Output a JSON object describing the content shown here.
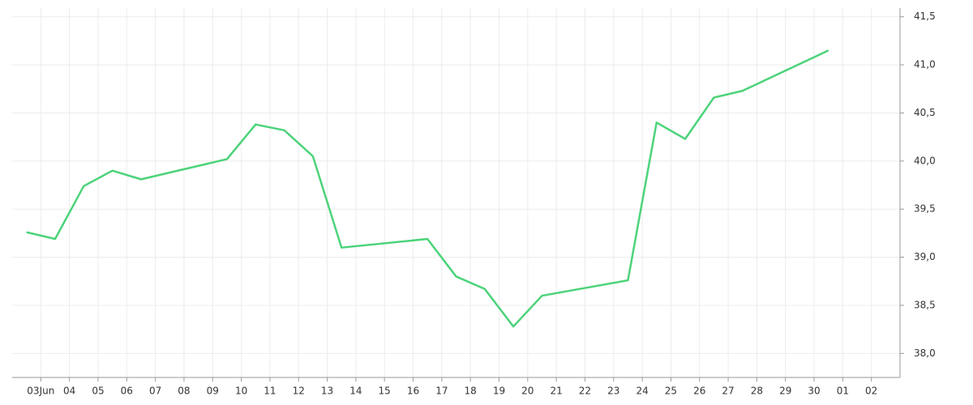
{
  "chart_data": {
    "type": "line",
    "x": [
      -0.5,
      0.5,
      1.5,
      2.5,
      3.5,
      6.5,
      7.5,
      8.5,
      9.5,
      10.5,
      13.5,
      14.5,
      15.5,
      16.5,
      17.5,
      20.5,
      21.5,
      22.5,
      23.5,
      24.5,
      27.5
    ],
    "series": [
      {
        "color": "#4cd37a",
        "values": [
          39.26,
          39.19,
          39.74,
          39.9,
          39.81,
          40.02,
          40.38,
          40.32,
          40.05,
          39.1,
          39.19,
          38.8,
          38.67,
          38.28,
          38.6,
          38.76,
          40.4,
          40.23,
          40.66,
          40.73,
          41.15
        ]
      }
    ],
    "xlim": [
      -1,
      30
    ],
    "xticks": [
      {
        "value": 0,
        "label": "03Jun"
      },
      {
        "value": 1,
        "label": "04"
      },
      {
        "value": 2,
        "label": "05"
      },
      {
        "value": 3,
        "label": "06"
      },
      {
        "value": 4,
        "label": "07"
      },
      {
        "value": 5,
        "label": "08"
      },
      {
        "value": 6,
        "label": "09"
      },
      {
        "value": 7,
        "label": "10"
      },
      {
        "value": 8,
        "label": "11"
      },
      {
        "value": 9,
        "label": "12"
      },
      {
        "value": 10,
        "label": "13"
      },
      {
        "value": 11,
        "label": "14"
      },
      {
        "value": 12,
        "label": "15"
      },
      {
        "value": 13,
        "label": "16"
      },
      {
        "value": 14,
        "label": "17"
      },
      {
        "value": 15,
        "label": "18"
      },
      {
        "value": 16,
        "label": "19"
      },
      {
        "value": 17,
        "label": "20"
      },
      {
        "value": 18,
        "label": "21"
      },
      {
        "value": 19,
        "label": "22"
      },
      {
        "value": 20,
        "label": "23"
      },
      {
        "value": 21,
        "label": "24"
      },
      {
        "value": 22,
        "label": "25"
      },
      {
        "value": 23,
        "label": "26"
      },
      {
        "value": 24,
        "label": "27"
      },
      {
        "value": 25,
        "label": "28"
      },
      {
        "value": 26,
        "label": "29"
      },
      {
        "value": 27,
        "label": "30"
      },
      {
        "value": 28,
        "label": "01"
      },
      {
        "value": 29,
        "label": "02"
      }
    ],
    "ylim": [
      37.75,
      41.59
    ],
    "yticks": [
      {
        "value": 38,
        "label": "38,0"
      },
      {
        "value": 38.5,
        "label": "38,5"
      },
      {
        "value": 39,
        "label": "39,0"
      },
      {
        "value": 39.5,
        "label": "39,5"
      },
      {
        "value": 40,
        "label": "40,0"
      },
      {
        "value": 40.5,
        "label": "40,5"
      },
      {
        "value": 41,
        "label": "41,0"
      },
      {
        "value": 41.5,
        "label": "41,5"
      }
    ],
    "grid": true
  }
}
